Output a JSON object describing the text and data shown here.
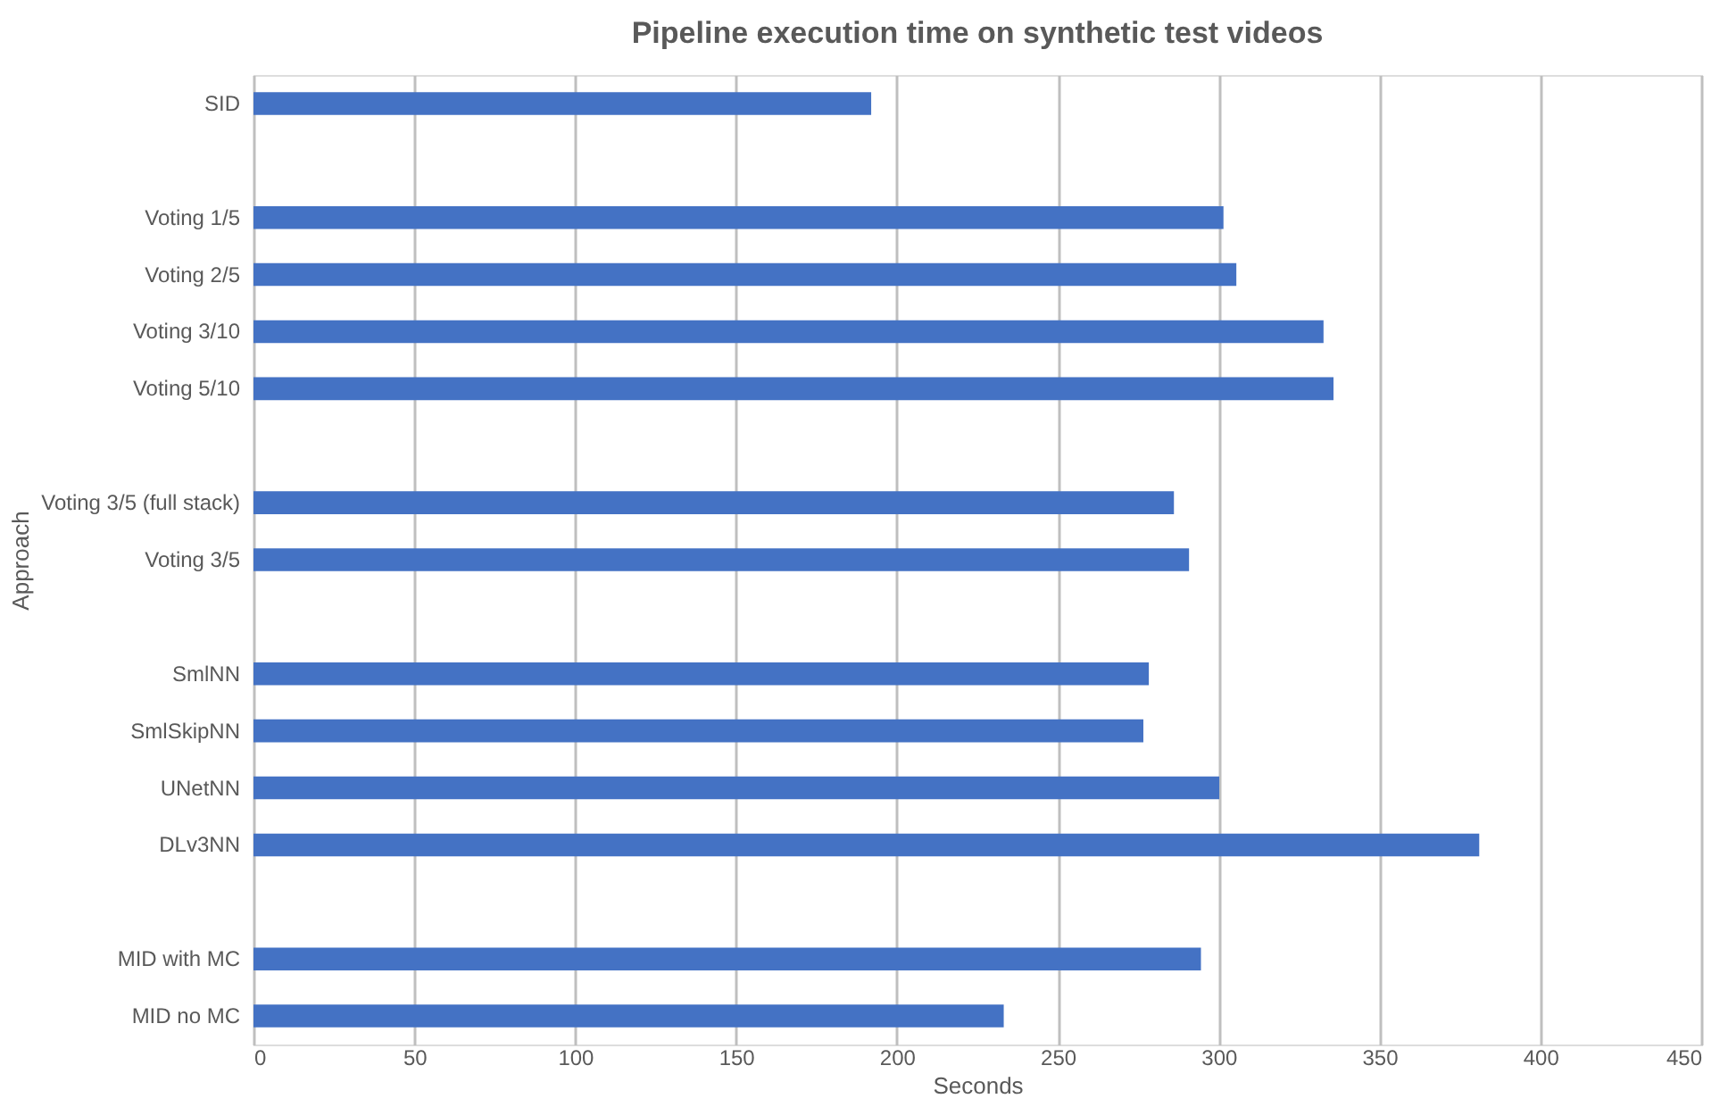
{
  "chart_data": {
    "type": "bar",
    "orientation": "horizontal",
    "title": "Pipeline execution time on synthetic test videos",
    "xlabel": "Seconds",
    "ylabel": "Approach",
    "categories": [
      "SID",
      null,
      "Voting 1/5",
      "Voting 2/5",
      "Voting 3/10",
      "Voting 5/10",
      null,
      "Voting 3/5 (full stack)",
      "Voting 3/5",
      null,
      "SmlNN",
      "SmlSkipNN",
      "UNetNN",
      "DLv3NN",
      null,
      "MID with MC",
      "MID no MC"
    ],
    "values": [
      192,
      null,
      301.5,
      305.5,
      332.6,
      335.7,
      null,
      286.1,
      290.8,
      null,
      278.3,
      276.6,
      300.2,
      381,
      null,
      294.5,
      233.2
    ],
    "color": "#4472c4",
    "xlim": [
      0,
      450
    ],
    "xticks": [
      0,
      50,
      100,
      150,
      200,
      250,
      300,
      350,
      400,
      450
    ],
    "grid": "x"
  }
}
